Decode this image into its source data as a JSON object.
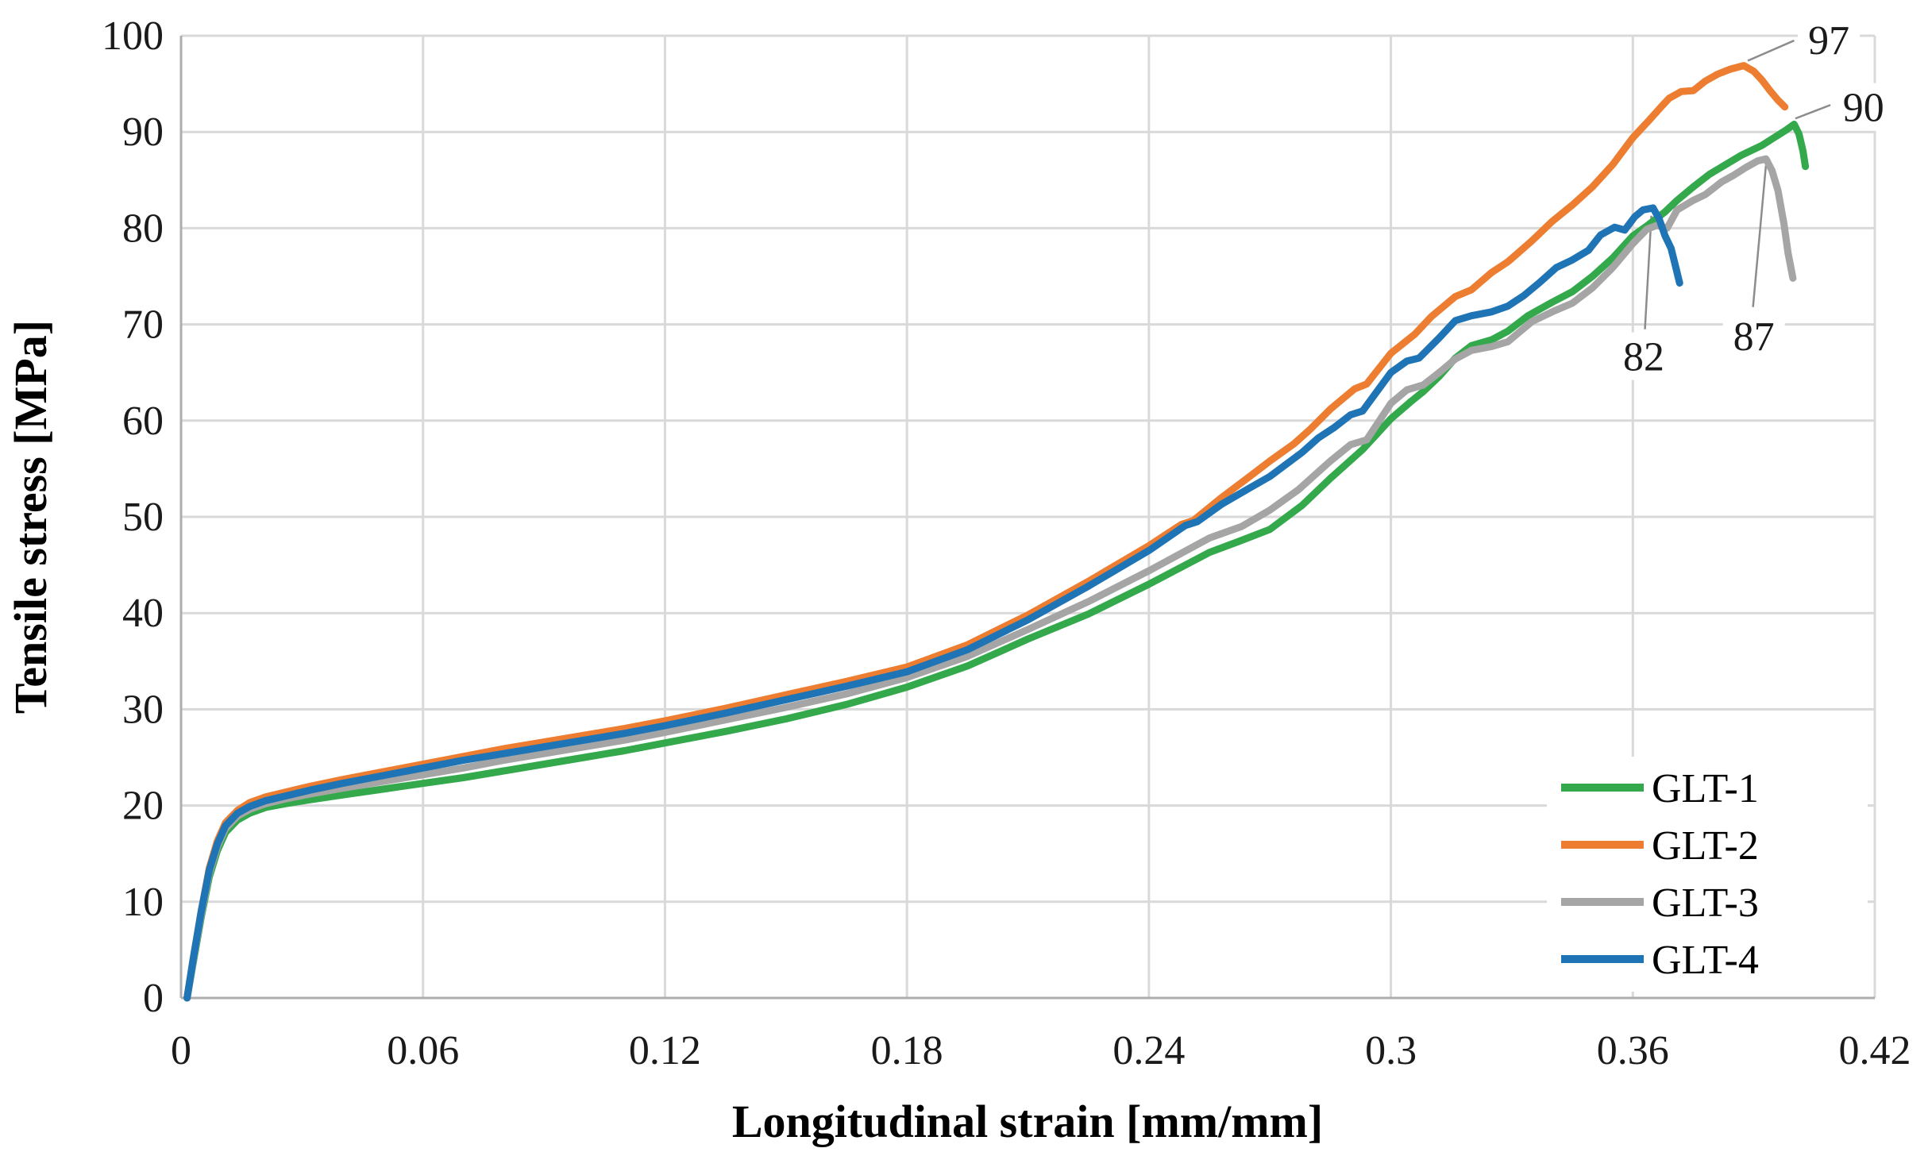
{
  "chart_data": {
    "type": "line",
    "title": "",
    "xlabel": "Longitudinal strain [mm/mm]",
    "ylabel": "Tensile stress [MPa]",
    "xlim": [
      0,
      0.42
    ],
    "ylim": [
      0,
      100
    ],
    "grid": "both",
    "legend_position": "inside-bottom-right",
    "x_ticks": {
      "values": [
        0,
        0.06,
        0.12,
        0.18,
        0.24,
        0.3,
        0.36,
        0.42
      ],
      "labels": [
        "0",
        "0.06",
        "0.12",
        "0.18",
        "0.24",
        "0.3",
        "0.36",
        "0.42"
      ]
    },
    "y_ticks": {
      "values": [
        0,
        10,
        20,
        30,
        40,
        50,
        60,
        70,
        80,
        90,
        100
      ],
      "labels": [
        "0",
        "10",
        "20",
        "30",
        "40",
        "50",
        "60",
        "70",
        "80",
        "90",
        "100"
      ]
    },
    "colors": {
      "grid": "#D9D9D9",
      "axis": "#ADADAD",
      "leader": "#8C8C8C",
      "background": "#FFFFFF"
    },
    "series": [
      {
        "name": "GLT-1",
        "color": "#33A94C",
        "peak_label": "90",
        "points": [
          [
            0.0015,
            0
          ],
          [
            0.003,
            3.6
          ],
          [
            0.005,
            8.4
          ],
          [
            0.007,
            12.6
          ],
          [
            0.009,
            15.3
          ],
          [
            0.011,
            17.2
          ],
          [
            0.014,
            18.5
          ],
          [
            0.017,
            19.2
          ],
          [
            0.021,
            19.8
          ],
          [
            0.026,
            20.2
          ],
          [
            0.032,
            20.6
          ],
          [
            0.04,
            21.1
          ],
          [
            0.05,
            21.7
          ],
          [
            0.06,
            22.3
          ],
          [
            0.07,
            22.9
          ],
          [
            0.08,
            23.6
          ],
          [
            0.09,
            24.3
          ],
          [
            0.1,
            25.0
          ],
          [
            0.11,
            25.7
          ],
          [
            0.12,
            26.5
          ],
          [
            0.135,
            27.7
          ],
          [
            0.15,
            29.0
          ],
          [
            0.165,
            30.5
          ],
          [
            0.18,
            32.3
          ],
          [
            0.195,
            34.5
          ],
          [
            0.21,
            37.3
          ],
          [
            0.225,
            39.9
          ],
          [
            0.24,
            43.0
          ],
          [
            0.255,
            46.3
          ],
          [
            0.262,
            47.4
          ],
          [
            0.27,
            48.7
          ],
          [
            0.278,
            51.2
          ],
          [
            0.285,
            54.0
          ],
          [
            0.293,
            57.0
          ],
          [
            0.3,
            60.2
          ],
          [
            0.305,
            62.0
          ],
          [
            0.308,
            63.0
          ],
          [
            0.312,
            64.6
          ],
          [
            0.316,
            66.5
          ],
          [
            0.32,
            67.8
          ],
          [
            0.325,
            68.4
          ],
          [
            0.329,
            69.3
          ],
          [
            0.334,
            70.9
          ],
          [
            0.34,
            72.3
          ],
          [
            0.345,
            73.4
          ],
          [
            0.35,
            75.0
          ],
          [
            0.355,
            76.9
          ],
          [
            0.36,
            79.2
          ],
          [
            0.364,
            80.4
          ],
          [
            0.368,
            81.7
          ],
          [
            0.371,
            82.9
          ],
          [
            0.375,
            84.3
          ],
          [
            0.379,
            85.6
          ],
          [
            0.383,
            86.6
          ],
          [
            0.387,
            87.6
          ],
          [
            0.392,
            88.6
          ],
          [
            0.395,
            89.4
          ],
          [
            0.398,
            90.2
          ],
          [
            0.4,
            90.8
          ],
          [
            0.4012,
            89.8
          ],
          [
            0.4022,
            88.0
          ],
          [
            0.4028,
            86.4
          ]
        ]
      },
      {
        "name": "GLT-2",
        "color": "#ED7D31",
        "peak_label": "97",
        "points": [
          [
            0.0015,
            0
          ],
          [
            0.003,
            4.0
          ],
          [
            0.005,
            9.0
          ],
          [
            0.007,
            13.5
          ],
          [
            0.009,
            16.3
          ],
          [
            0.011,
            18.2
          ],
          [
            0.014,
            19.5
          ],
          [
            0.017,
            20.3
          ],
          [
            0.021,
            20.9
          ],
          [
            0.026,
            21.4
          ],
          [
            0.032,
            22.0
          ],
          [
            0.04,
            22.7
          ],
          [
            0.05,
            23.5
          ],
          [
            0.06,
            24.3
          ],
          [
            0.07,
            25.1
          ],
          [
            0.08,
            25.9
          ],
          [
            0.09,
            26.6
          ],
          [
            0.1,
            27.3
          ],
          [
            0.11,
            28.0
          ],
          [
            0.12,
            28.8
          ],
          [
            0.135,
            30.1
          ],
          [
            0.15,
            31.5
          ],
          [
            0.165,
            32.9
          ],
          [
            0.18,
            34.4
          ],
          [
            0.195,
            36.7
          ],
          [
            0.21,
            39.8
          ],
          [
            0.225,
            43.3
          ],
          [
            0.24,
            47.0
          ],
          [
            0.248,
            49.2
          ],
          [
            0.251,
            49.6
          ],
          [
            0.258,
            52.0
          ],
          [
            0.265,
            54.2
          ],
          [
            0.27,
            55.8
          ],
          [
            0.276,
            57.6
          ],
          [
            0.28,
            59.1
          ],
          [
            0.285,
            61.2
          ],
          [
            0.291,
            63.3
          ],
          [
            0.294,
            63.8
          ],
          [
            0.3,
            67.0
          ],
          [
            0.306,
            69.0
          ],
          [
            0.31,
            70.8
          ],
          [
            0.316,
            72.9
          ],
          [
            0.32,
            73.6
          ],
          [
            0.325,
            75.4
          ],
          [
            0.329,
            76.5
          ],
          [
            0.335,
            78.7
          ],
          [
            0.34,
            80.7
          ],
          [
            0.345,
            82.4
          ],
          [
            0.35,
            84.3
          ],
          [
            0.355,
            86.6
          ],
          [
            0.36,
            89.4
          ],
          [
            0.364,
            91.2
          ],
          [
            0.367,
            92.6
          ],
          [
            0.369,
            93.5
          ],
          [
            0.372,
            94.2
          ],
          [
            0.375,
            94.3
          ],
          [
            0.378,
            95.3
          ],
          [
            0.381,
            96.0
          ],
          [
            0.384,
            96.5
          ],
          [
            0.3875,
            96.9
          ],
          [
            0.39,
            96.3
          ],
          [
            0.392,
            95.4
          ],
          [
            0.394,
            94.3
          ],
          [
            0.396,
            93.3
          ],
          [
            0.3977,
            92.6
          ]
        ]
      },
      {
        "name": "GLT-3",
        "color": "#A5A5A5",
        "peak_label": "87",
        "points": [
          [
            0.0015,
            0
          ],
          [
            0.003,
            3.8
          ],
          [
            0.005,
            8.7
          ],
          [
            0.007,
            13.0
          ],
          [
            0.009,
            15.7
          ],
          [
            0.011,
            17.6
          ],
          [
            0.014,
            18.9
          ],
          [
            0.017,
            19.6
          ],
          [
            0.021,
            20.2
          ],
          [
            0.026,
            20.7
          ],
          [
            0.032,
            21.2
          ],
          [
            0.04,
            21.8
          ],
          [
            0.05,
            22.5
          ],
          [
            0.06,
            23.2
          ],
          [
            0.07,
            23.9
          ],
          [
            0.08,
            24.7
          ],
          [
            0.09,
            25.4
          ],
          [
            0.1,
            26.1
          ],
          [
            0.11,
            26.8
          ],
          [
            0.12,
            27.6
          ],
          [
            0.135,
            28.9
          ],
          [
            0.15,
            30.2
          ],
          [
            0.165,
            31.6
          ],
          [
            0.18,
            33.3
          ],
          [
            0.195,
            35.5
          ],
          [
            0.21,
            38.3
          ],
          [
            0.225,
            41.2
          ],
          [
            0.24,
            44.4
          ],
          [
            0.255,
            47.8
          ],
          [
            0.263,
            49.0
          ],
          [
            0.27,
            50.7
          ],
          [
            0.277,
            52.8
          ],
          [
            0.285,
            55.8
          ],
          [
            0.29,
            57.5
          ],
          [
            0.294,
            58.0
          ],
          [
            0.3,
            61.8
          ],
          [
            0.304,
            63.2
          ],
          [
            0.308,
            63.7
          ],
          [
            0.312,
            65.0
          ],
          [
            0.316,
            66.4
          ],
          [
            0.32,
            67.3
          ],
          [
            0.325,
            67.7
          ],
          [
            0.329,
            68.2
          ],
          [
            0.335,
            70.3
          ],
          [
            0.34,
            71.3
          ],
          [
            0.345,
            72.2
          ],
          [
            0.35,
            73.8
          ],
          [
            0.355,
            75.9
          ],
          [
            0.36,
            78.4
          ],
          [
            0.3635,
            79.9
          ],
          [
            0.366,
            80.3
          ],
          [
            0.3685,
            80.0
          ],
          [
            0.371,
            81.9
          ],
          [
            0.375,
            82.9
          ],
          [
            0.378,
            83.5
          ],
          [
            0.382,
            84.8
          ],
          [
            0.385,
            85.5
          ],
          [
            0.388,
            86.3
          ],
          [
            0.391,
            87.0
          ],
          [
            0.393,
            87.2
          ],
          [
            0.3945,
            86.0
          ],
          [
            0.396,
            83.9
          ],
          [
            0.3975,
            80.4
          ],
          [
            0.3985,
            77.4
          ],
          [
            0.3997,
            74.8
          ]
        ]
      },
      {
        "name": "GLT-4",
        "color": "#1F74B5",
        "peak_label": "82",
        "points": [
          [
            0.0015,
            0
          ],
          [
            0.003,
            4.0
          ],
          [
            0.005,
            9.0
          ],
          [
            0.007,
            13.3
          ],
          [
            0.009,
            16.0
          ],
          [
            0.011,
            17.9
          ],
          [
            0.014,
            19.2
          ],
          [
            0.017,
            19.9
          ],
          [
            0.021,
            20.5
          ],
          [
            0.026,
            21.0
          ],
          [
            0.032,
            21.6
          ],
          [
            0.04,
            22.3
          ],
          [
            0.05,
            23.1
          ],
          [
            0.06,
            23.9
          ],
          [
            0.07,
            24.7
          ],
          [
            0.08,
            25.4
          ],
          [
            0.09,
            26.1
          ],
          [
            0.1,
            26.8
          ],
          [
            0.11,
            27.5
          ],
          [
            0.12,
            28.3
          ],
          [
            0.135,
            29.6
          ],
          [
            0.15,
            31.0
          ],
          [
            0.165,
            32.4
          ],
          [
            0.18,
            33.9
          ],
          [
            0.195,
            36.2
          ],
          [
            0.21,
            39.3
          ],
          [
            0.225,
            42.8
          ],
          [
            0.24,
            46.5
          ],
          [
            0.249,
            49.1
          ],
          [
            0.252,
            49.5
          ],
          [
            0.258,
            51.3
          ],
          [
            0.265,
            53.0
          ],
          [
            0.27,
            54.2
          ],
          [
            0.278,
            56.7
          ],
          [
            0.282,
            58.2
          ],
          [
            0.286,
            59.3
          ],
          [
            0.29,
            60.6
          ],
          [
            0.293,
            61.0
          ],
          [
            0.3,
            65.0
          ],
          [
            0.304,
            66.2
          ],
          [
            0.307,
            66.5
          ],
          [
            0.312,
            68.6
          ],
          [
            0.316,
            70.4
          ],
          [
            0.32,
            70.9
          ],
          [
            0.325,
            71.3
          ],
          [
            0.329,
            71.9
          ],
          [
            0.333,
            73.0
          ],
          [
            0.337,
            74.4
          ],
          [
            0.341,
            75.9
          ],
          [
            0.345,
            76.7
          ],
          [
            0.349,
            77.7
          ],
          [
            0.352,
            79.3
          ],
          [
            0.3555,
            80.1
          ],
          [
            0.358,
            79.8
          ],
          [
            0.3605,
            81.2
          ],
          [
            0.3625,
            81.9
          ],
          [
            0.365,
            82.1
          ],
          [
            0.3665,
            81.0
          ],
          [
            0.368,
            79.2
          ],
          [
            0.3695,
            77.9
          ],
          [
            0.3705,
            76.2
          ],
          [
            0.3716,
            74.3
          ]
        ]
      }
    ],
    "annotations": [
      {
        "text": "97",
        "x": 0.4086,
        "y": 99.6,
        "leader": [
          [
            0.3885,
            97.4
          ],
          [
            0.4,
            99.5
          ]
        ]
      },
      {
        "text": "90",
        "x": 0.4172,
        "y": 92.6,
        "leader": [
          [
            0.4003,
            91.4
          ],
          [
            0.409,
            92.8
          ]
        ]
      },
      {
        "text": "87",
        "x": 0.39,
        "y": 68.8,
        "leader": [
          [
            0.393,
            86.5
          ],
          [
            0.3898,
            71.8
          ]
        ]
      },
      {
        "text": "82",
        "x": 0.3627,
        "y": 66.7,
        "leader": [
          [
            0.3646,
            81.3
          ],
          [
            0.363,
            69.5
          ]
        ]
      }
    ],
    "legend": {
      "items": [
        "GLT-1",
        "GLT-2",
        "GLT-3",
        "GLT-4"
      ]
    }
  }
}
